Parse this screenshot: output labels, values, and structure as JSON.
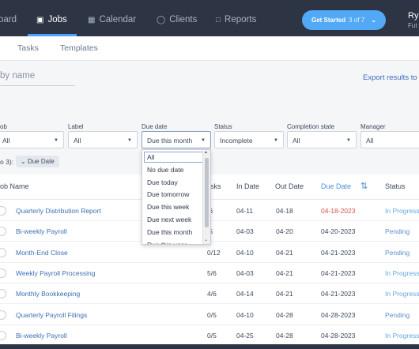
{
  "nav": {
    "items": [
      {
        "label": "oard",
        "icon": "dashboard-icon"
      },
      {
        "label": "Jobs",
        "icon": "briefcase-icon"
      },
      {
        "label": "Calendar",
        "icon": "calendar-icon"
      },
      {
        "label": "Clients",
        "icon": "user-icon"
      },
      {
        "label": "Reports",
        "icon": "folder-icon"
      }
    ],
    "get_started": {
      "label": "Get Started",
      "progress": "3 of 7"
    },
    "user": {
      "name": "Ryc",
      "sub": "Fut"
    }
  },
  "subtabs": [
    "Tasks",
    "Templates"
  ],
  "search": {
    "placeholder": "by name"
  },
  "export_label": "Export results to E",
  "filters": {
    "job": {
      "label": "ob",
      "value": "All"
    },
    "label": {
      "label": "Label",
      "value": "All"
    },
    "due_date": {
      "label": "Due date",
      "value": "Due this month"
    },
    "status": {
      "label": "Status",
      "value": "Incomplete"
    },
    "completion": {
      "label": "Completion state",
      "value": "All"
    },
    "manager": {
      "label": "Manager",
      "value": "All"
    }
  },
  "group": {
    "label": "o 3):",
    "chip": "Due Date"
  },
  "dropdown": {
    "options": [
      "All",
      "No due date",
      "Due today",
      "Due tomorrow",
      "Due this week",
      "Due next week",
      "Due this month",
      "Due this year"
    ]
  },
  "table": {
    "headers": {
      "job_name": "ob Name",
      "tasks": "sks",
      "in_date": "In Date",
      "out_date": "Out Date",
      "due_date": "Due Date",
      "status": "Status"
    },
    "rows": [
      {
        "name": "Quarterly Distribution Report",
        "tasks": "/6",
        "in": "04-11",
        "out": "04-18",
        "due": "04-18-2023",
        "status": "In Progress",
        "overdue": true,
        "state": "progress"
      },
      {
        "name": "Bi-weekly Payroll",
        "tasks": "/5",
        "in": "04-03",
        "out": "04-20",
        "due": "04-20-2023",
        "status": "Pending",
        "overdue": false,
        "state": "pending"
      },
      {
        "name": "Month-End Close",
        "tasks": "0/12",
        "in": "04-10",
        "out": "04-21",
        "due": "04-21-2023",
        "status": "Pending",
        "overdue": false,
        "state": "pending"
      },
      {
        "name": "Weekly Payroll Processing",
        "tasks": "5/6",
        "in": "04-03",
        "out": "04-21",
        "due": "04-21-2023",
        "status": "In Progress",
        "overdue": false,
        "state": "progress"
      },
      {
        "name": "Monthly Bookkeeping",
        "tasks": "4/6",
        "in": "04-14",
        "out": "04-21",
        "due": "04-21-2023",
        "status": "In Progress",
        "overdue": false,
        "state": "progress"
      },
      {
        "name": "Quarterly Payroll Filings",
        "tasks": "0/5",
        "in": "04-10",
        "out": "04-28",
        "due": "04-28-2023",
        "status": "Pending",
        "overdue": false,
        "state": "pending"
      },
      {
        "name": "Bi-weekly Payroll",
        "tasks": "0/5",
        "in": "04-25",
        "out": "04-28",
        "due": "04-28-2023",
        "status": "In Progress",
        "overdue": false,
        "state": "progress"
      }
    ]
  },
  "colors": {
    "nav_bg": "#2d3544",
    "accent": "#52a9f6",
    "link": "#3b6fb6",
    "overdue": "#d9534f"
  }
}
